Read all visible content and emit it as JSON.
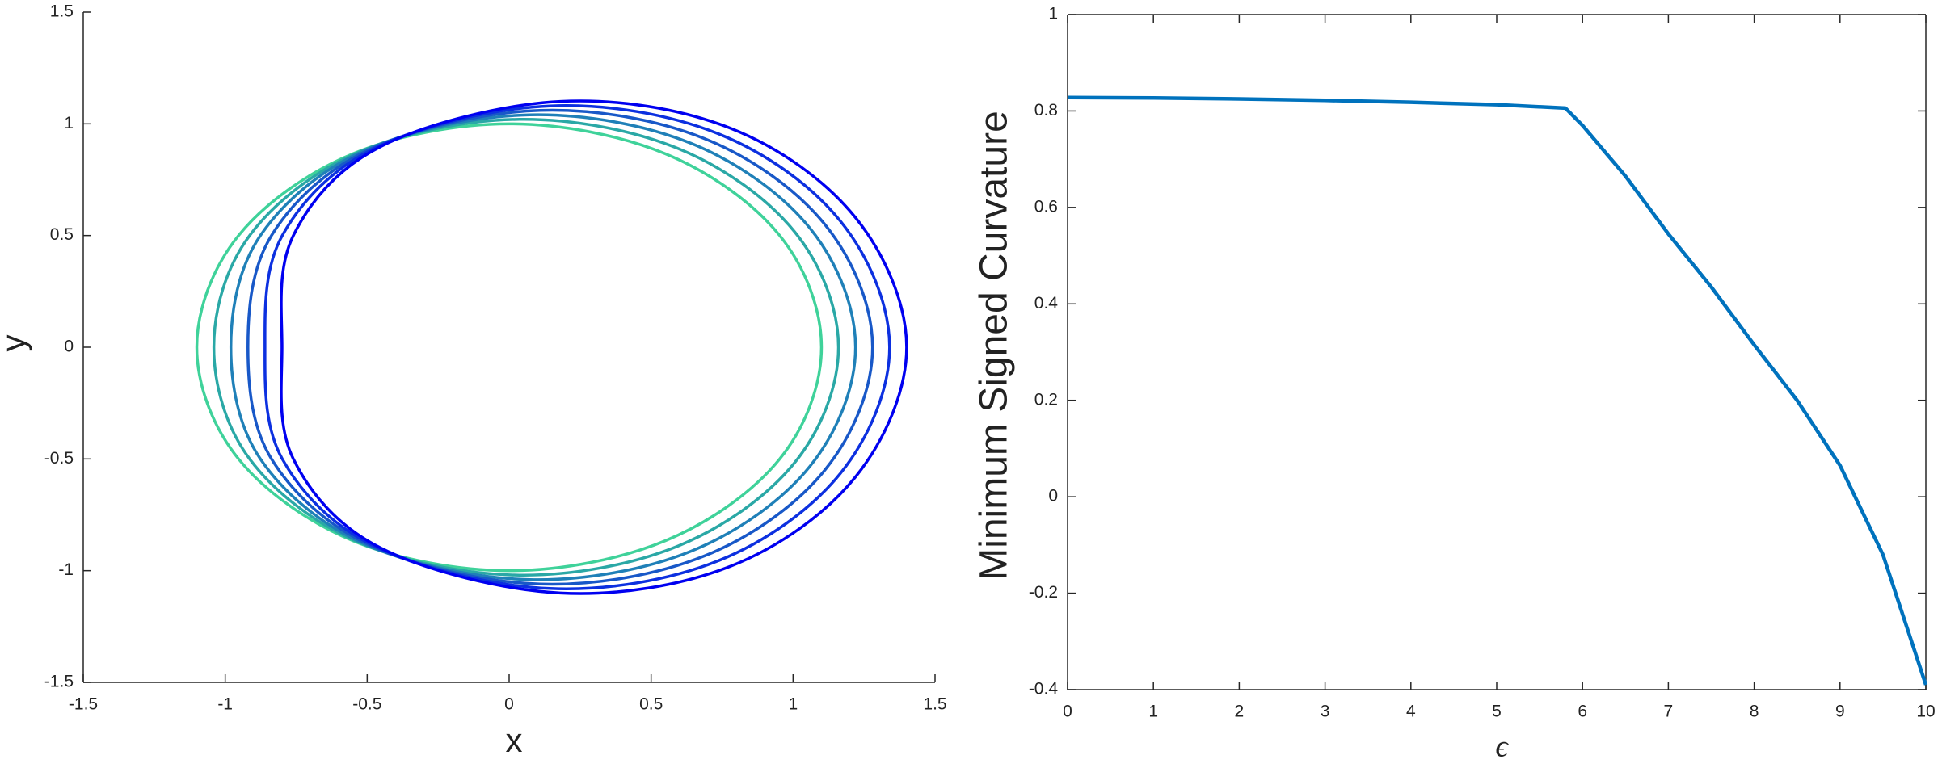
{
  "chart_data": [
    {
      "type": "line",
      "xlabel": "x",
      "ylabel": "y",
      "xlim": [
        -1.5,
        1.5
      ],
      "xticks": [
        -1.5,
        -1,
        -0.5,
        0,
        0.5,
        1,
        1.5
      ],
      "ylim": [
        -1.5,
        1.5
      ],
      "yticks": [
        -1.5,
        -1,
        -0.5,
        0,
        0.5,
        1,
        1.5
      ],
      "box": false,
      "series": [
        {
          "color": "#3fd29a",
          "x": [
            1.1,
            0.953,
            0.55,
            0,
            -0.55,
            -0.953,
            -1.1,
            -0.953,
            -0.55,
            0,
            0.55,
            0.953,
            1.1
          ],
          "values": [
            0,
            0.5,
            0.866,
            1,
            0.866,
            0.5,
            0,
            -0.5,
            -0.866,
            -1,
            -0.866,
            -0.5,
            0
          ]
        },
        {
          "color": "#2aa8a6",
          "x": [
            1.16,
            1.006,
            0.596,
            0.036,
            -0.53,
            -0.914,
            -1.04,
            -0.914,
            -0.53,
            0.036,
            0.596,
            1.006,
            1.16
          ],
          "values": [
            0,
            0.516,
            0.889,
            1.02,
            0.873,
            0.5,
            0,
            -0.5,
            -0.873,
            -1.02,
            -0.889,
            -0.516,
            0
          ]
        },
        {
          "color": "#1f80b8",
          "x": [
            1.22,
            1.06,
            0.642,
            0.072,
            -0.51,
            -0.876,
            -0.98,
            -0.876,
            -0.51,
            0.072,
            0.642,
            1.06,
            1.22
          ],
          "values": [
            0,
            0.532,
            0.912,
            1.04,
            0.88,
            0.5,
            0,
            -0.5,
            -0.88,
            -1.04,
            -0.912,
            -0.532,
            0
          ]
        },
        {
          "color": "#1858c8",
          "x": [
            1.28,
            1.113,
            0.688,
            0.108,
            -0.49,
            -0.837,
            -0.92,
            -0.837,
            -0.49,
            0.108,
            0.688,
            1.113,
            1.28
          ],
          "values": [
            0,
            0.548,
            0.934,
            1.06,
            0.886,
            0.5,
            0,
            -0.5,
            -0.886,
            -1.06,
            -0.934,
            -0.548,
            0
          ]
        },
        {
          "color": "#0c30e0",
          "x": [
            1.34,
            1.167,
            0.734,
            0.144,
            -0.47,
            -0.799,
            -0.86,
            -0.799,
            -0.47,
            0.144,
            0.734,
            1.167,
            1.34
          ],
          "values": [
            0,
            0.564,
            0.957,
            1.08,
            0.893,
            0.5,
            0,
            -0.5,
            -0.893,
            -1.08,
            -0.957,
            -0.564,
            0
          ]
        },
        {
          "color": "#0000f0",
          "x": [
            1.4,
            1.22,
            0.78,
            0.18,
            -0.45,
            -0.76,
            -0.8,
            -0.76,
            -0.45,
            0.18,
            0.78,
            1.22,
            1.4
          ],
          "values": [
            0,
            0.58,
            0.98,
            1.1,
            0.9,
            0.5,
            0,
            -0.5,
            -0.9,
            -1.1,
            -0.98,
            -0.58,
            0
          ]
        }
      ]
    },
    {
      "type": "line",
      "xlabel": "ϵ",
      "ylabel": "Minimum Signed Curvature",
      "xlim": [
        0,
        10
      ],
      "xticks": [
        0,
        1,
        2,
        3,
        4,
        5,
        6,
        7,
        8,
        9,
        10
      ],
      "ylim": [
        -0.4,
        1
      ],
      "yticks": [
        -0.4,
        -0.2,
        0,
        0.2,
        0.4,
        0.6,
        0.8,
        1
      ],
      "box": true,
      "x": [
        0,
        1,
        2,
        3,
        4,
        5,
        5.8,
        6,
        6.5,
        7,
        7.5,
        8,
        8.5,
        9,
        9.5,
        10
      ],
      "series": [
        {
          "color": "#0072bd",
          "values": [
            0.828,
            0.827,
            0.825,
            0.822,
            0.818,
            0.813,
            0.806,
            0.77,
            0.665,
            0.545,
            0.435,
            0.315,
            0.2,
            0.065,
            -0.12,
            -0.39
          ]
        }
      ]
    }
  ]
}
